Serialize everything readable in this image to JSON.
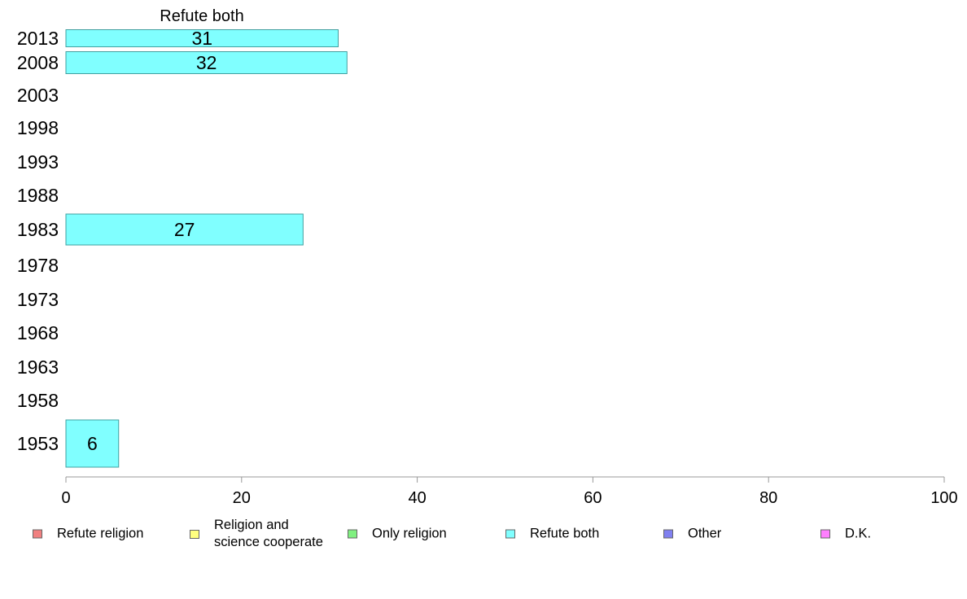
{
  "chart_data": {
    "type": "bar",
    "orientation": "horizontal",
    "title": "Refute both",
    "categories": [
      "2013",
      "2008",
      "2003",
      "1998",
      "1993",
      "1988",
      "1983",
      "1978",
      "1973",
      "1968",
      "1963",
      "1958",
      "1953"
    ],
    "values": [
      31,
      32,
      null,
      null,
      null,
      null,
      27,
      null,
      null,
      null,
      null,
      null,
      6
    ],
    "data_labels": [
      "31",
      "32",
      "",
      "",
      "",
      "",
      "27",
      "",
      "",
      "",
      "",
      "",
      "6"
    ],
    "xlim": [
      0,
      100
    ],
    "xticks": [
      0,
      20,
      40,
      60,
      80,
      100
    ],
    "xlabel": "",
    "ylabel": "",
    "grid": false,
    "bar_color": "#80ffff",
    "bar_edge_color": "#40a0a0",
    "legend_position": "bottom"
  },
  "legend": {
    "items": [
      {
        "label": "Refute religion",
        "color": "#f08080"
      },
      {
        "label": "Religion and\nscience cooperate",
        "color": "#ffff80"
      },
      {
        "label": "Only religion",
        "color": "#80f080"
      },
      {
        "label": "Refute both",
        "color": "#80ffff"
      },
      {
        "label": "Other",
        "color": "#8080f0"
      },
      {
        "label": "D.K.",
        "color": "#ff80ff"
      }
    ]
  }
}
